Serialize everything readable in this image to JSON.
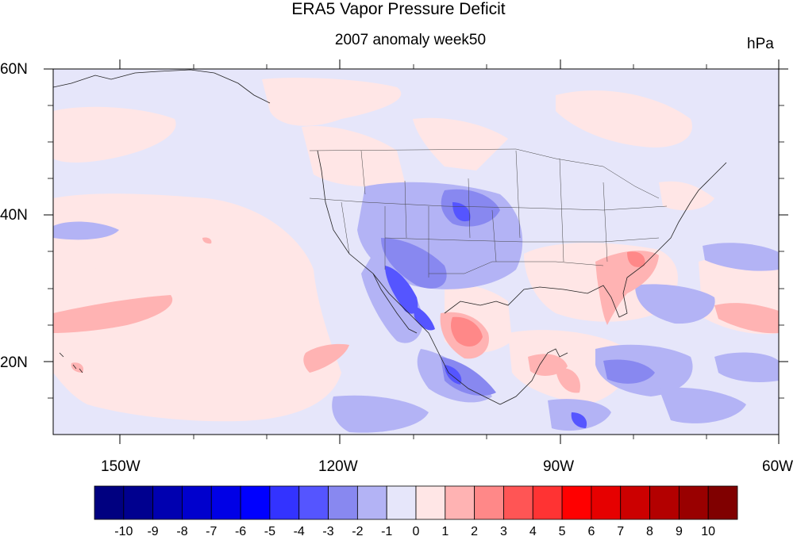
{
  "header": {
    "title": "ERA5 Vapor Pressure Deficit",
    "subtitle": "2007 anomaly week50",
    "units": "hPa"
  },
  "axes": {
    "lat_labels": [
      "60N",
      "40N",
      "20N"
    ],
    "lon_labels": [
      "150W",
      "120W",
      "90W",
      "60W"
    ]
  },
  "map": {
    "projection": "cylindrical equidistant",
    "lon_range": [
      -160,
      -60
    ],
    "lat_range": [
      10,
      60
    ],
    "background_color": "#e6e6fa",
    "features": [
      "coastlines",
      "us-state-borders",
      "country-borders"
    ]
  },
  "colorbar": {
    "labels": [
      "-10",
      "-9",
      "-8",
      "-7",
      "-6",
      "-5",
      "-4",
      "-3",
      "-2",
      "-1",
      "0",
      "1",
      "2",
      "3",
      "4",
      "5",
      "6",
      "7",
      "8",
      "9",
      "10"
    ],
    "colors": [
      "#000080",
      "#00008f",
      "#0000b0",
      "#0000cd",
      "#0000e6",
      "#0000ff",
      "#3333ff",
      "#5555ff",
      "#8888f0",
      "#b3b3f5",
      "#e6e6fa",
      "#ffe6e6",
      "#ffb3b3",
      "#ff8888",
      "#ff5555",
      "#ff3333",
      "#ff0000",
      "#e60000",
      "#cc0000",
      "#b30000",
      "#990000",
      "#800000"
    ]
  }
}
